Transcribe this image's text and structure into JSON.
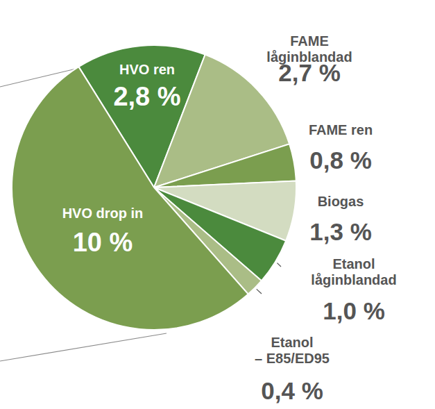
{
  "chart_data": {
    "type": "pie",
    "categories": [
      "HVO ren",
      "FAME låginblandad",
      "FAME ren",
      "Biogas",
      "Etanol låginblandad",
      "Etanol – E85/ED95",
      "HVO drop in"
    ],
    "values": [
      2.8,
      2.7,
      0.8,
      1.3,
      1.0,
      0.4,
      10
    ],
    "value_labels": [
      "2,8 %",
      "2,7 %",
      "0,8 %",
      "1,3 %",
      "1,0 %",
      "0,4 %",
      "10 %"
    ],
    "colors": [
      "#4b8a3d",
      "#aabd86",
      "#7b9e4f",
      "#d3dcc1",
      "#4b8a3d",
      "#aabd86",
      "#7b9e4f"
    ],
    "data_labels": true
  }
}
